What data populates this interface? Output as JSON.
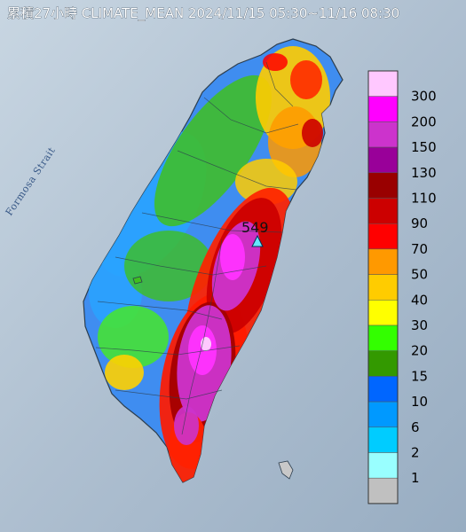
{
  "title": "累積27小時 CLIMATE_MEAN 2024/11/15 05:30~11/16 08:30",
  "strait_label": "Formosa Strait",
  "max_value_label": "549",
  "legend": [
    {
      "label": "300",
      "color": "#ffc8ff"
    },
    {
      "label": "200",
      "color": "#ff00ff"
    },
    {
      "label": "150",
      "color": "#cc33cc"
    },
    {
      "label": "130",
      "color": "#990099"
    },
    {
      "label": "110",
      "color": "#990000"
    },
    {
      "label": "90",
      "color": "#cc0000"
    },
    {
      "label": "70",
      "color": "#ff0000"
    },
    {
      "label": "50",
      "color": "#ff9900"
    },
    {
      "label": "40",
      "color": "#ffcc00"
    },
    {
      "label": "30",
      "color": "#ffff00"
    },
    {
      "label": "20",
      "color": "#33ff00"
    },
    {
      "label": "15",
      "color": "#339900"
    },
    {
      "label": "10",
      "color": "#0066ff"
    },
    {
      "label": "6",
      "color": "#0099ff"
    },
    {
      "label": "2",
      "color": "#00ccff"
    },
    {
      "label": "1",
      "color": "#99ffff"
    },
    {
      "label": "",
      "color": "#c0c0c0"
    }
  ]
}
